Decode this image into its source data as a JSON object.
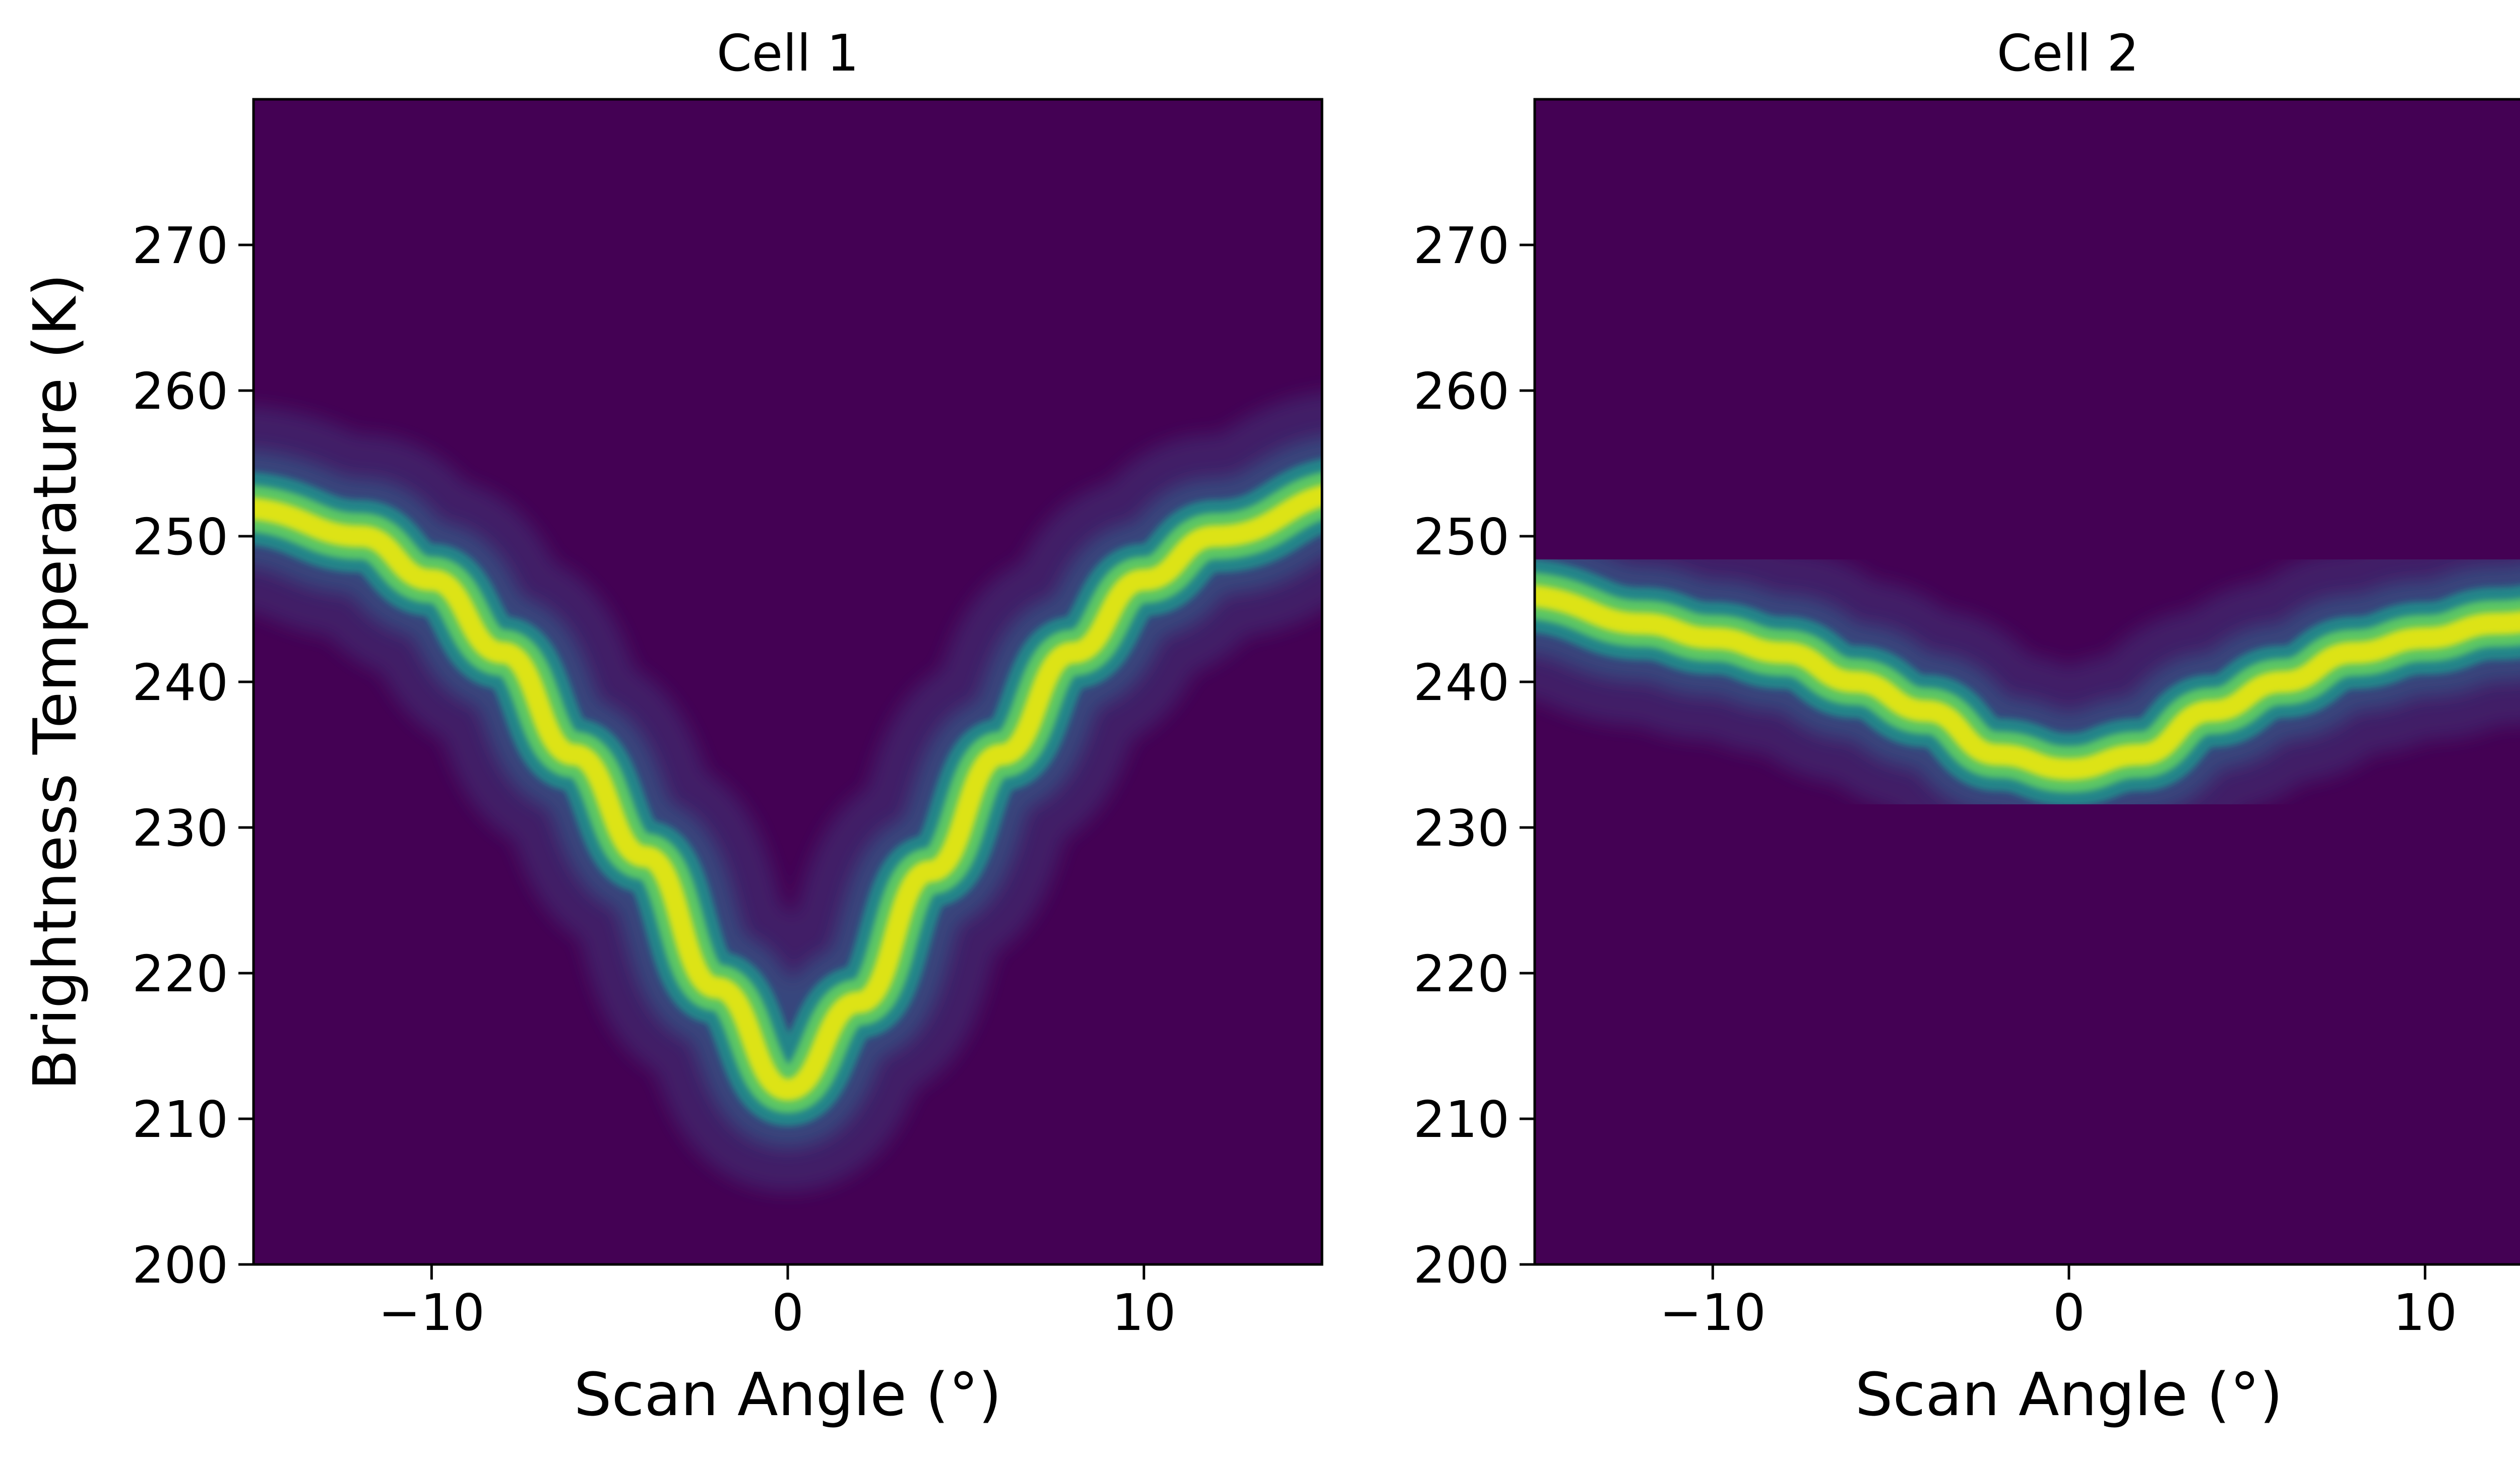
{
  "chart_data": [
    {
      "type": "heatmap",
      "title": "Cell 1",
      "xlabel": "Scan Angle (°)",
      "ylabel": "Brightness Temperature (K)",
      "xlim": [
        -15,
        15
      ],
      "ylim": [
        200,
        280
      ],
      "xticks": [
        -10,
        0,
        10
      ],
      "xtick_labels": [
        "−10",
        "0",
        "10"
      ],
      "yticks": [
        200,
        210,
        220,
        230,
        240,
        250,
        260,
        270
      ],
      "ytick_labels": [
        "200",
        "210",
        "220",
        "230",
        "240",
        "250",
        "260",
        "270"
      ],
      "colormap": "viridis",
      "grid": false,
      "ridge": {
        "x": [
          -15,
          -12,
          -10,
          -8,
          -6,
          -4,
          -2,
          0,
          2,
          4,
          6,
          8,
          10,
          12,
          15
        ],
        "y": [
          252,
          250,
          247,
          242,
          235,
          228,
          219,
          212,
          218,
          227,
          235,
          242,
          247,
          250,
          253
        ]
      }
    },
    {
      "type": "heatmap",
      "title": "Cell 2",
      "xlabel": "Scan Angle (°)",
      "ylabel": "",
      "xlim": [
        -15,
        15
      ],
      "ylim": [
        200,
        280
      ],
      "xticks": [
        -10,
        0,
        10
      ],
      "xtick_labels": [
        "−10",
        "0",
        "10"
      ],
      "yticks": [
        200,
        210,
        220,
        230,
        240,
        250,
        260,
        270
      ],
      "ytick_labels": [
        "200",
        "210",
        "220",
        "230",
        "240",
        "250",
        "260",
        "270"
      ],
      "colormap": "viridis",
      "grid": false,
      "ridge": {
        "x": [
          -15,
          -12,
          -10,
          -8,
          -6,
          -4,
          -2,
          0,
          2,
          4,
          6,
          8,
          10,
          12,
          15
        ],
        "y": [
          246,
          244,
          243,
          242,
          240,
          238,
          235,
          234,
          235,
          238,
          240,
          242,
          243,
          244,
          246
        ]
      }
    }
  ],
  "colors": {
    "background": "#440154",
    "ridge_peak": "#dde318",
    "ridge_mid": "#21918c",
    "halo": "#3b528b"
  }
}
